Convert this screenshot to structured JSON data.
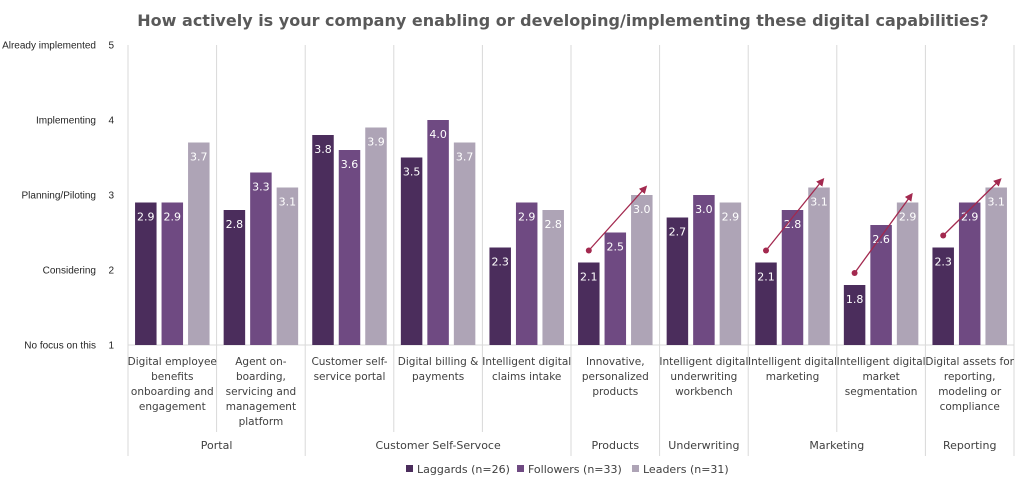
{
  "chart_data": {
    "type": "bar",
    "title": "How actively is your company enabling or developing/implementing these digital capabilities?",
    "ylim": [
      1,
      5
    ],
    "yticks": [
      1,
      2,
      3,
      4,
      5
    ],
    "ylabels": [
      "No focus on this",
      "Considering",
      "Planning/Piloting",
      "Implementing",
      "Already implemented"
    ],
    "categories": [
      [
        "Digital employee",
        "benefits",
        "onboarding and",
        "engagement"
      ],
      [
        "Agent on-",
        "boarding,",
        "servicing and",
        "management",
        "platform"
      ],
      [
        "Customer self-",
        "service portal"
      ],
      [
        "Digital billing &",
        "payments"
      ],
      [
        "Intelligent digital",
        "claims intake"
      ],
      [
        "Innovative,",
        "personalized",
        "products"
      ],
      [
        "Intelligent digital",
        "underwriting",
        "workbench"
      ],
      [
        "Intelligent digital",
        "marketing"
      ],
      [
        "Intelligent digital",
        "market",
        "segmentation"
      ],
      [
        "Digital assets for",
        "reporting,",
        "modeling or",
        "compliance"
      ]
    ],
    "groups": [
      {
        "label": "Portal",
        "categories": 2
      },
      {
        "label": "Customer Self-Servoce",
        "categories": 3
      },
      {
        "label": "Products",
        "categories": 1
      },
      {
        "label": "Underwriting",
        "categories": 1
      },
      {
        "label": "Marketing",
        "categories": 2
      },
      {
        "label": "Reporting",
        "categories": 1
      }
    ],
    "series": [
      {
        "name": "Laggards (n=26)",
        "color": "#4b2d5c",
        "values": [
          2.9,
          2.8,
          3.8,
          3.5,
          2.3,
          2.1,
          2.7,
          2.1,
          1.8,
          2.3
        ]
      },
      {
        "name": "Followers (n=33)",
        "color": "#6f4a82",
        "values": [
          2.9,
          3.3,
          3.6,
          4.0,
          2.9,
          2.5,
          3.0,
          2.8,
          2.6,
          2.9
        ]
      },
      {
        "name": "Leaders (n=31)",
        "color": "#aea4b6",
        "values": [
          3.7,
          3.1,
          3.9,
          3.7,
          2.8,
          3.0,
          2.9,
          3.1,
          2.9,
          3.1
        ]
      }
    ],
    "trend_arrows": [
      5,
      7,
      8,
      9
    ],
    "arrow_color": "#a3294f",
    "grid": "vertical category separators",
    "legend_position": "bottom"
  }
}
